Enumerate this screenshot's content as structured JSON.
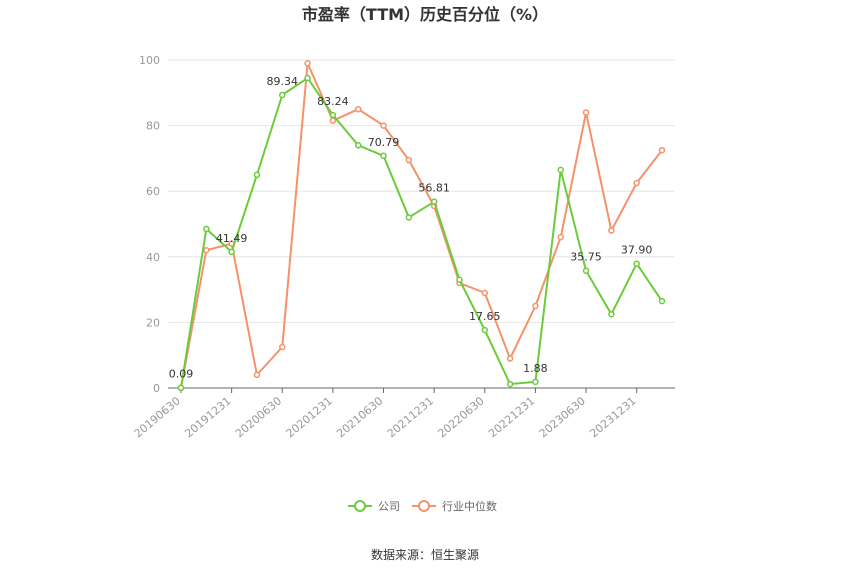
{
  "chart_data": {
    "type": "line",
    "title": "市盈率（TTM）历史百分位（%）",
    "ylim": [
      0,
      100
    ],
    "yticks": [
      0,
      20,
      40,
      60,
      80,
      100
    ],
    "x": [
      "20190630",
      "20190930",
      "20191231",
      "20200331",
      "20200630",
      "20200930",
      "20201231",
      "20210331",
      "20210630",
      "20210930",
      "20211231",
      "20220331",
      "20220630",
      "20220930",
      "20221231",
      "20230331",
      "20230630",
      "20230930",
      "20231231",
      "20240331"
    ],
    "xtick_labels": [
      "20190630",
      "20191231",
      "20200630",
      "20201231",
      "20210630",
      "20211231",
      "20220630",
      "20221231",
      "20230630",
      "20231231"
    ],
    "series": [
      {
        "name": "公司",
        "color": "#6ccb3c",
        "values": [
          0.09,
          48.5,
          41.49,
          65.0,
          89.34,
          94.5,
          83.24,
          74.0,
          70.79,
          52.0,
          56.81,
          33.0,
          17.65,
          1.2,
          1.88,
          66.5,
          35.75,
          22.5,
          37.9,
          26.5
        ]
      },
      {
        "name": "行业中位数",
        "color": "#f4926a",
        "values": [
          0.0,
          42.0,
          44.0,
          4.0,
          12.5,
          99.0,
          81.5,
          85.0,
          80.0,
          69.5,
          55.5,
          32.0,
          29.0,
          9.0,
          25.0,
          46.0,
          84.0,
          48.0,
          62.5,
          72.5
        ]
      }
    ],
    "data_labels": [
      {
        "series": 0,
        "index": 0,
        "text": "0.09"
      },
      {
        "series": 0,
        "index": 2,
        "text": "41.49"
      },
      {
        "series": 0,
        "index": 4,
        "text": "89.34"
      },
      {
        "series": 0,
        "index": 6,
        "text": "83.24"
      },
      {
        "series": 0,
        "index": 8,
        "text": "70.79"
      },
      {
        "series": 0,
        "index": 10,
        "text": "56.81"
      },
      {
        "series": 0,
        "index": 12,
        "text": "17.65"
      },
      {
        "series": 0,
        "index": 14,
        "text": "1.88"
      },
      {
        "series": 0,
        "index": 16,
        "text": "35.75"
      },
      {
        "series": 0,
        "index": 18,
        "text": "37.90"
      }
    ],
    "grid": true,
    "legend_position": "bottom-center"
  },
  "source": "数据来源：恒生聚源"
}
